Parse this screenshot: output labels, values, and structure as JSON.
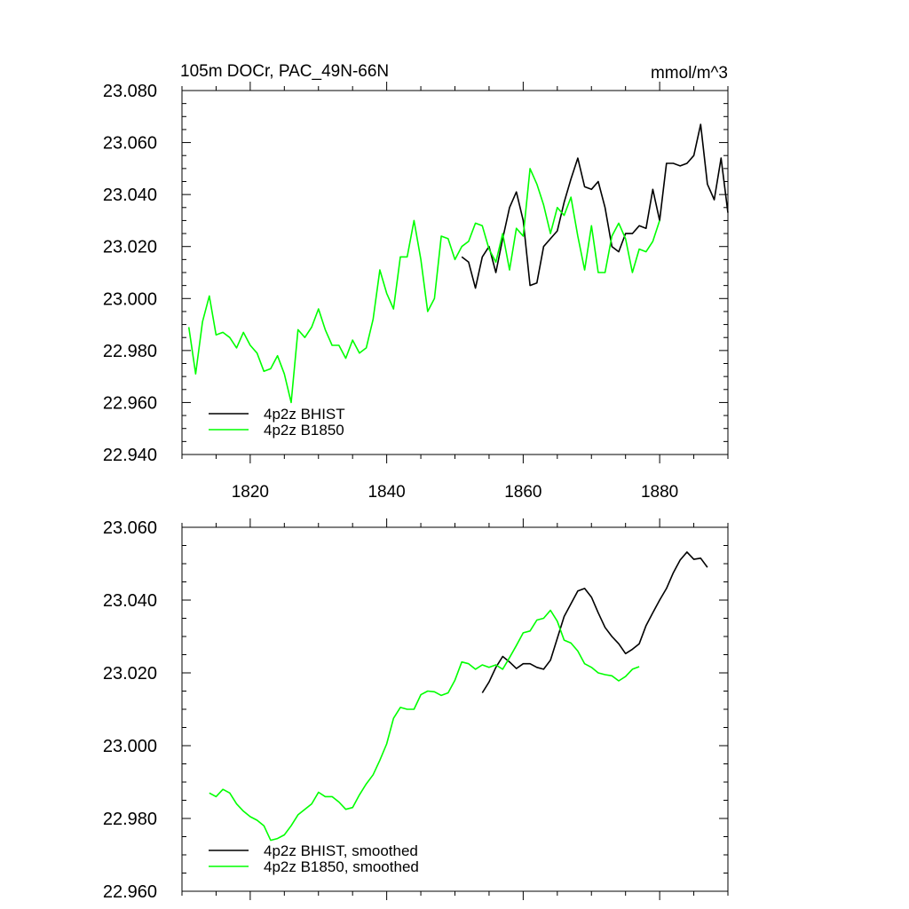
{
  "title_left": "105m DOCr, PAC_49N-66N",
  "title_right": "mmol/m^3",
  "chart_data": [
    {
      "type": "line",
      "xlim": [
        1810,
        1890
      ],
      "ylim": [
        22.94,
        23.08
      ],
      "yticks": [
        "22.940",
        "22.960",
        "22.980",
        "23.000",
        "23.020",
        "23.040",
        "23.060",
        "23.080"
      ],
      "xticks": [
        "1820",
        "1840",
        "1860",
        "1880"
      ],
      "legend_position": "bottom-left",
      "series": [
        {
          "name": "4p2z BHIST",
          "color": "#000000",
          "x_start": 1851,
          "values": [
            23.016,
            23.014,
            23.004,
            23.016,
            23.02,
            23.01,
            23.023,
            23.035,
            23.041,
            23.03,
            23.005,
            23.006,
            23.02,
            23.023,
            23.026,
            23.037,
            23.046,
            23.054,
            23.043,
            23.042,
            23.045,
            23.035,
            23.02,
            23.018,
            23.025,
            23.025,
            23.028,
            23.027,
            23.042,
            23.03,
            23.052,
            23.052,
            23.051,
            23.052,
            23.055,
            23.067,
            23.044,
            23.038,
            23.054,
            23.033
          ]
        },
        {
          "name": "4p2z B1850",
          "color": "#00ff00",
          "x_start": 1811,
          "values": [
            22.989,
            22.971,
            22.991,
            23.001,
            22.986,
            22.987,
            22.985,
            22.981,
            22.987,
            22.982,
            22.979,
            22.972,
            22.973,
            22.978,
            22.971,
            22.96,
            22.988,
            22.985,
            22.989,
            22.996,
            22.988,
            22.982,
            22.982,
            22.977,
            22.984,
            22.979,
            22.981,
            22.992,
            23.011,
            23.002,
            22.996,
            23.016,
            23.016,
            23.03,
            23.015,
            22.995,
            23.0,
            23.024,
            23.023,
            23.015,
            23.02,
            23.022,
            23.029,
            23.028,
            23.019,
            23.014,
            23.025,
            23.011,
            23.027,
            23.024,
            23.05,
            23.044,
            23.036,
            23.025,
            23.035,
            23.032,
            23.039,
            23.024,
            23.011,
            23.028,
            23.01,
            23.01,
            23.024,
            23.029,
            23.023,
            23.01,
            23.019,
            23.018,
            23.022,
            23.03
          ]
        }
      ]
    },
    {
      "type": "line",
      "xlim": [
        1810,
        1890
      ],
      "ylim": [
        22.96,
        23.06
      ],
      "yticks": [
        "22.960",
        "22.980",
        "23.000",
        "23.020",
        "23.040",
        "23.060"
      ],
      "xticks": [],
      "legend_position": "bottom-left",
      "series": [
        {
          "name": "4p2z BHIST, smoothed",
          "color": "#000000",
          "x_start": 1854,
          "values": [
            23.0145,
            23.0175,
            23.0215,
            23.0245,
            23.023,
            23.0212,
            23.0225,
            23.0225,
            23.0215,
            23.021,
            23.0235,
            23.0295,
            23.0355,
            23.039,
            23.0425,
            23.0432,
            23.0408,
            23.0365,
            23.0325,
            23.03,
            23.028,
            23.0253,
            23.0265,
            23.028,
            23.033,
            23.0365,
            23.04,
            23.0432,
            23.0475,
            23.051,
            23.0532,
            23.0512,
            23.0515,
            23.049
          ]
        },
        {
          "name": "4p2z B1850, smoothed",
          "color": "#00ff00",
          "x_start": 1814,
          "values": [
            22.987,
            22.986,
            22.988,
            22.987,
            22.984,
            22.982,
            22.9805,
            22.9795,
            22.978,
            22.974,
            22.9745,
            22.9755,
            22.978,
            22.981,
            22.9825,
            22.984,
            22.9872,
            22.986,
            22.986,
            22.9845,
            22.9825,
            22.983,
            22.9865,
            22.9895,
            22.992,
            22.996,
            23.0005,
            23.0075,
            23.0105,
            23.01,
            23.01,
            23.014,
            23.015,
            23.0148,
            23.0138,
            23.0145,
            23.018,
            23.023,
            23.0225,
            23.021,
            23.0222,
            23.0215,
            23.0222,
            23.021,
            23.0242,
            23.0275,
            23.031,
            23.0315,
            23.0345,
            23.035,
            23.0372,
            23.0342,
            23.029,
            23.0282,
            23.026,
            23.0225,
            23.0215,
            23.02,
            23.0195,
            23.0192,
            23.0178,
            23.019,
            23.021,
            23.0217
          ]
        }
      ]
    }
  ]
}
